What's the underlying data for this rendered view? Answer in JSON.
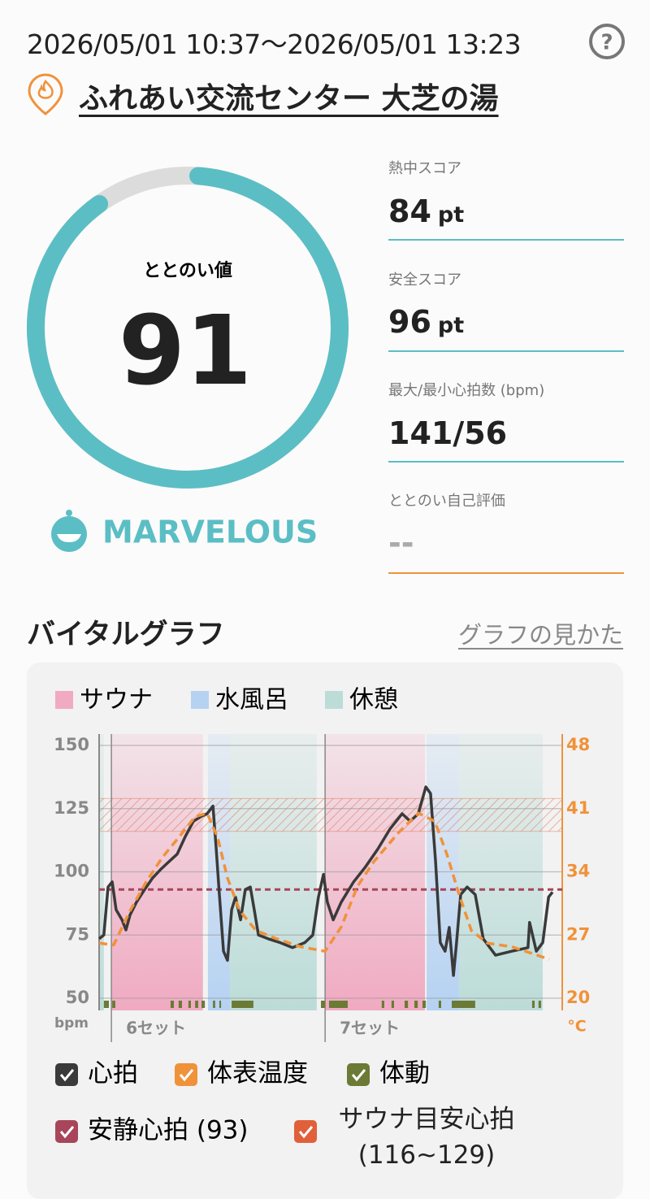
{
  "header": {
    "period": "2026/05/01 10:37〜2026/05/01 13:23",
    "help": "?",
    "facility": "ふれあい交流センター 大芝の湯"
  },
  "gauge": {
    "label": "ととのい値",
    "value": 91,
    "range": [
      0,
      100
    ],
    "rating": "MARVELOUS",
    "color": "#5bbec4"
  },
  "stats": [
    {
      "label": "熱中スコア",
      "value": 84,
      "unit": "pt"
    },
    {
      "label": "安全スコア",
      "value": 96,
      "unit": "pt"
    },
    {
      "label": "最大/最小心拍数 (bpm)",
      "value": "141/56"
    },
    {
      "label": "ととのい自己評価",
      "value": "--"
    }
  ],
  "section": {
    "title": "バイタルグラフ",
    "link": "グラフの見かた"
  },
  "chart_data": {
    "type": "line",
    "xlim": [
      0,
      166
    ],
    "ylim": [
      50,
      150
    ],
    "yticks": [
      50,
      75,
      100,
      125,
      150
    ],
    "ylabel": "bpm",
    "y2lim": [
      20,
      48
    ],
    "y2ticks": [
      20,
      27,
      34,
      41,
      48
    ],
    "y2label": "°C",
    "grid": true,
    "phase_types": [
      {
        "name": "サウナ",
        "color": "#f0aac1"
      },
      {
        "name": "水風呂",
        "color": "#b5d2f2"
      },
      {
        "name": "休憩",
        "color": "#bcdcd8"
      }
    ],
    "phases": [
      {
        "type": "休憩",
        "start": 0,
        "end": 1.7
      },
      {
        "type": "サウナ",
        "start": 4.4,
        "end": 37.2
      },
      {
        "type": "水風呂",
        "start": 39.0,
        "end": 46.9
      },
      {
        "type": "休憩",
        "start": 46.9,
        "end": 78.0
      },
      {
        "type": "サウナ",
        "start": 81.0,
        "end": 116.8
      },
      {
        "type": "水風呂",
        "start": 117.4,
        "end": 129.0
      },
      {
        "type": "休憩",
        "start": 129.0,
        "end": 159.0
      }
    ],
    "sets": [
      {
        "label": "6セット",
        "x": 4.4
      },
      {
        "label": "7セット",
        "x": 81.0
      }
    ],
    "series": [
      {
        "name": "心拍",
        "color": "#3a3a3a",
        "x": [
          0,
          1.7,
          3.2,
          4.7,
          6.1,
          8.2,
          9.6,
          11.1,
          13.4,
          16.3,
          19.2,
          22.1,
          25.0,
          28.0,
          30.9,
          33.8,
          36.7,
          38.7,
          40.8,
          41.9,
          43.1,
          44.6,
          46.0,
          47.5,
          48.9,
          50.7,
          52.4,
          54.2,
          55.6,
          57.1,
          60.6,
          64.9,
          69.3,
          73.7,
          76.6,
          78.6,
          80.4,
          81.8,
          83.9,
          86.8,
          91.2,
          95.5,
          99.9,
          104.3,
          108.6,
          111.5,
          114.4,
          117.1,
          118.8,
          120.6,
          122.3,
          124.0,
          125.5,
          127.0,
          128.1,
          129.6,
          131.9,
          134.8,
          137.7,
          142.1,
          147.9,
          153.7,
          154.3,
          156.7,
          159.0,
          161.1,
          162.5
        ],
        "values": [
          73.5,
          75,
          94,
          96,
          85,
          81,
          77,
          83,
          88,
          93,
          97.6,
          101,
          104,
          107,
          114,
          120,
          122,
          123,
          126,
          110,
          91,
          68.6,
          65,
          85,
          90,
          81,
          93,
          94,
          85,
          75,
          73.5,
          72,
          70,
          72,
          75,
          90,
          99,
          88,
          81,
          88,
          96,
          102,
          109,
          117,
          123,
          120,
          123,
          133.6,
          131,
          104,
          72,
          68.6,
          78,
          59,
          72,
          91,
          94,
          91,
          73.5,
          67,
          68.6,
          70,
          80,
          68.6,
          72,
          90,
          92
        ]
      },
      {
        "name": "体表温度",
        "color": "#f0923a",
        "axis": "y2",
        "x": [
          0,
          5.2,
          11.1,
          16.9,
          22.7,
          28.5,
          34.4,
          38.7,
          42.5,
          46.0,
          50.4,
          56.2,
          63.5,
          72.2,
          81.0,
          86.8,
          92.6,
          98.4,
          107.2,
          114.4,
          120.3,
          124.6,
          129.0,
          133.4,
          139.2,
          147.9,
          156.7,
          161.3
        ],
        "values": [
          26.1,
          25.9,
          29.7,
          32.9,
          35.6,
          37.8,
          40.1,
          40.5,
          37.8,
          33.3,
          29.7,
          27.5,
          26.6,
          25.7,
          25.2,
          27.9,
          32.4,
          35.1,
          38.3,
          40.5,
          39.6,
          36.0,
          31.5,
          27.5,
          26.1,
          25.7,
          24.8,
          24.3
        ]
      }
    ],
    "movement": {
      "name": "体動",
      "color": "#6b7a35",
      "segments": [
        [
          1.7,
          3.5
        ],
        [
          4.7,
          5.8
        ],
        [
          25.6,
          26.8
        ],
        [
          28.5,
          29.7
        ],
        [
          32.0,
          32.9
        ],
        [
          34.4,
          35.5
        ],
        [
          36.7,
          37.9
        ],
        [
          40.8,
          41.6
        ],
        [
          43.1,
          43.7
        ],
        [
          47.5,
          55.3
        ],
        [
          79.5,
          81.0
        ],
        [
          82.4,
          89.1
        ],
        [
          101.3,
          102.2
        ],
        [
          104.8,
          105.7
        ],
        [
          109.5,
          110.7
        ],
        [
          113.0,
          114.2
        ],
        [
          115.9,
          117.1
        ],
        [
          121.7,
          122.6
        ],
        [
          126.4,
          134.8
        ],
        [
          155.2,
          156.1
        ],
        [
          157.5,
          158.4
        ]
      ]
    },
    "resting_hr": {
      "name": "安静心拍 (93)",
      "value": 93,
      "color": "#a8455a"
    },
    "sauna_target": {
      "name": "サウナ目安心拍 (116~129)",
      "range": [
        116,
        129
      ],
      "color": "#e0603a"
    }
  }
}
